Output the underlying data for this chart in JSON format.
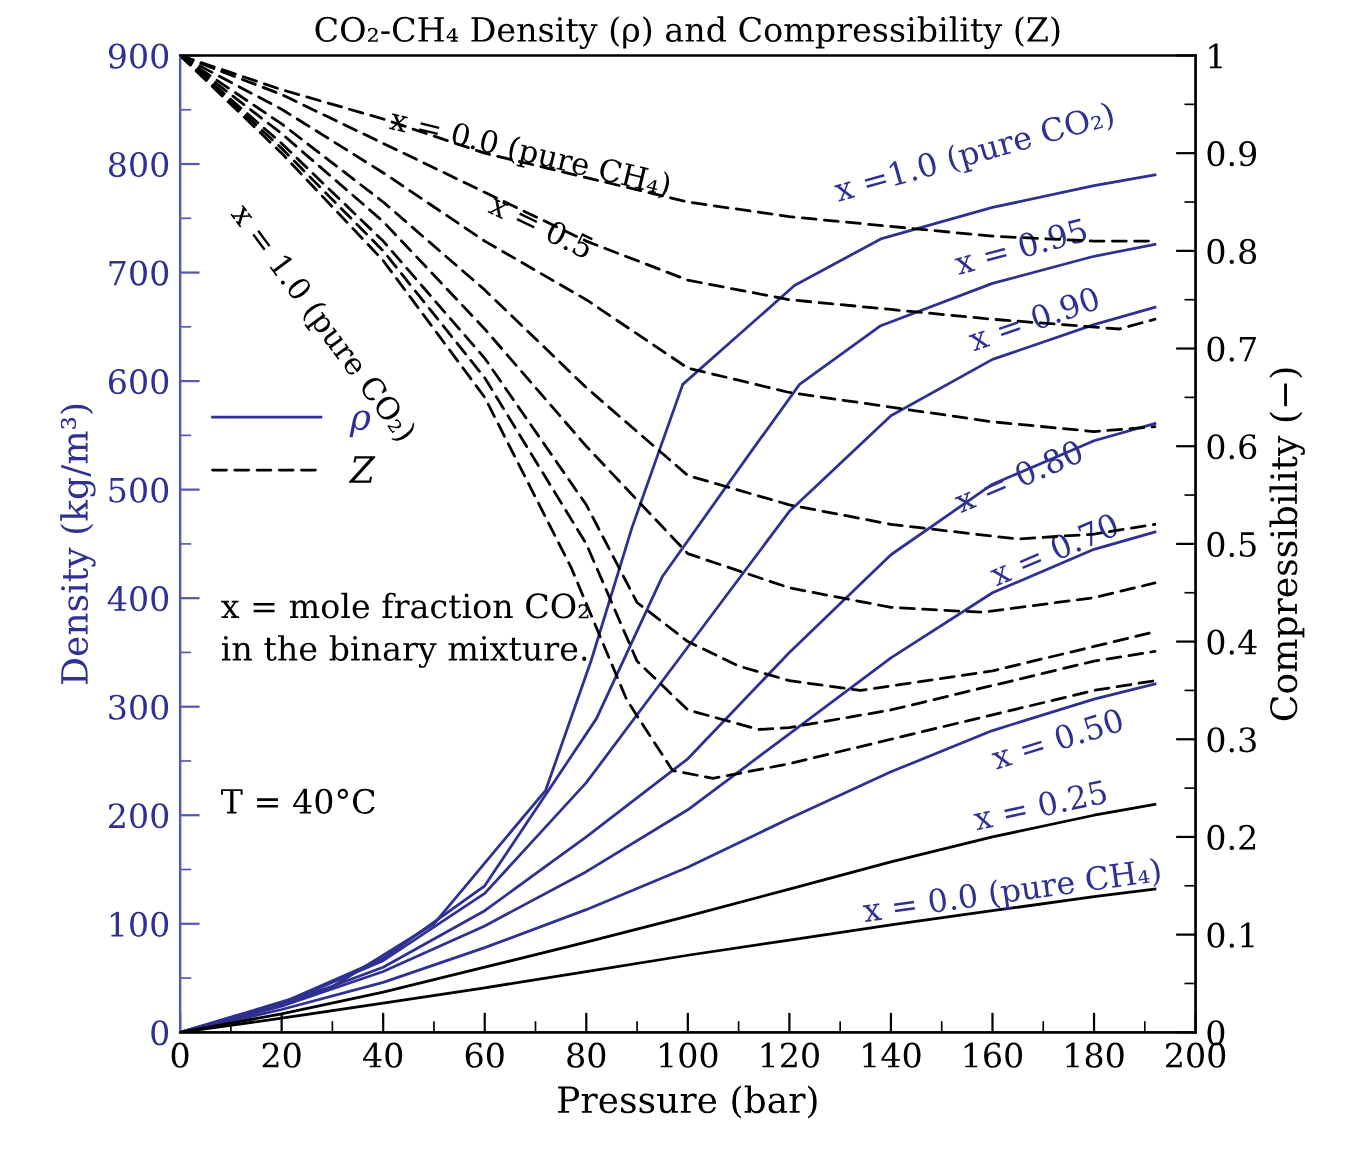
{
  "chart_data": {
    "type": "line",
    "title": "CO₂-CH₄ Density (ρ) and Compressibility (Z)",
    "xlabel": "Pressure (bar)",
    "ylabel": "Density (kg/m³)",
    "y2label": "Compressibility (−)",
    "xlim": [
      0,
      200
    ],
    "xticks": [
      0,
      20,
      40,
      60,
      80,
      100,
      120,
      140,
      160,
      180,
      200
    ],
    "ylim": [
      0,
      900
    ],
    "yticks": [
      0,
      100,
      200,
      300,
      400,
      500,
      600,
      700,
      800,
      900
    ],
    "y2lim": [
      0,
      1
    ],
    "y2ticks": [
      0,
      0.1,
      0.2,
      0.3,
      0.4,
      0.5,
      0.6,
      0.7,
      0.8,
      0.9,
      1
    ],
    "grid": false,
    "legend": "left",
    "marker": "none",
    "series": [
      {
        "name": "ρ",
        "axis": "y",
        "color": "#2e3192",
        "line_style": "solid",
        "x": [
          0,
          20,
          30,
          50,
          72,
          81,
          89,
          99,
          121,
          138,
          160,
          180,
          192
        ],
        "values": [
          0,
          28,
          42,
          100,
          223,
          343,
          465,
          597,
          688,
          731,
          760,
          780,
          790
        ]
      },
      {
        "axis": "y",
        "color": "#2e3192",
        "line_style": "solid",
        "x": [
          0,
          20,
          40,
          60,
          82,
          95,
          112,
          122,
          138,
          160,
          180,
          192
        ],
        "values": [
          0,
          27,
          68,
          135,
          289,
          420,
          532,
          597,
          651,
          690,
          715,
          726
        ]
      },
      {
        "axis": "y",
        "color": "#2e3192",
        "line_style": "solid",
        "x": [
          0,
          20,
          40,
          60,
          80,
          100,
          120,
          140,
          160,
          180,
          192
        ],
        "values": [
          0,
          26,
          66,
          128,
          230,
          355,
          480,
          568,
          620,
          652,
          668
        ]
      },
      {
        "axis": "y",
        "color": "#2e3192",
        "line_style": "solid",
        "x": [
          0,
          20,
          40,
          60,
          80,
          100,
          120,
          140,
          160,
          180,
          192
        ],
        "values": [
          0,
          25,
          60,
          112,
          180,
          252,
          350,
          440,
          505,
          545,
          561
        ]
      },
      {
        "axis": "y",
        "color": "#2e3192",
        "line_style": "solid",
        "x": [
          0,
          20,
          40,
          60,
          80,
          100,
          120,
          140,
          160,
          180,
          192
        ],
        "values": [
          0,
          24,
          56,
          98,
          148,
          205,
          275,
          345,
          405,
          445,
          461
        ]
      },
      {
        "axis": "y",
        "color": "#2e3192",
        "line_style": "solid",
        "x": [
          0,
          20,
          40,
          60,
          80,
          100,
          120,
          140,
          160,
          180,
          192
        ],
        "values": [
          0,
          21,
          46,
          78,
          113,
          152,
          197,
          240,
          278,
          307,
          321
        ]
      },
      {
        "axis": "y",
        "color": "#000000",
        "line_style": "solid",
        "x": [
          0,
          20,
          40,
          60,
          80,
          100,
          120,
          140,
          160,
          180,
          192
        ],
        "values": [
          0,
          17,
          37,
          60,
          83,
          107,
          132,
          157,
          180,
          200,
          210
        ]
      },
      {
        "axis": "y",
        "color": "#000000",
        "line_style": "solid",
        "x": [
          0,
          20,
          40,
          60,
          80,
          100,
          120,
          140,
          160,
          180,
          192
        ],
        "values": [
          0,
          13,
          27,
          41,
          56,
          71,
          85,
          99,
          112,
          125,
          132
        ]
      },
      {
        "name": "Z",
        "axis": "y2",
        "color": "#000000",
        "line_style": "dashed",
        "x": [
          0,
          20,
          40,
          60,
          77,
          88,
          97,
          105,
          120,
          140,
          160,
          180,
          192
        ],
        "values": [
          1,
          0.9,
          0.79,
          0.65,
          0.476,
          0.34,
          0.268,
          0.26,
          0.275,
          0.3,
          0.325,
          0.35,
          0.36
        ]
      },
      {
        "axis": "y2",
        "color": "#000000",
        "line_style": "dashed",
        "x": [
          0,
          20,
          40,
          60,
          80,
          90,
          100,
          114,
          120,
          140,
          160,
          180,
          192
        ],
        "values": [
          1,
          0.905,
          0.8,
          0.67,
          0.5,
          0.38,
          0.33,
          0.31,
          0.312,
          0.33,
          0.355,
          0.38,
          0.39
        ]
      },
      {
        "axis": "y2",
        "color": "#000000",
        "line_style": "dashed",
        "x": [
          0,
          20,
          40,
          60,
          80,
          90,
          100,
          110,
          120,
          134,
          160,
          180,
          192
        ],
        "values": [
          1,
          0.91,
          0.81,
          0.69,
          0.54,
          0.44,
          0.4,
          0.375,
          0.36,
          0.35,
          0.37,
          0.395,
          0.41
        ]
      },
      {
        "axis": "y2",
        "color": "#000000",
        "line_style": "dashed",
        "x": [
          0,
          20,
          40,
          60,
          80,
          100,
          120,
          140,
          158,
          180,
          192
        ],
        "values": [
          1,
          0.92,
          0.83,
          0.72,
          0.6,
          0.49,
          0.455,
          0.435,
          0.43,
          0.445,
          0.46
        ]
      },
      {
        "axis": "y2",
        "color": "#000000",
        "line_style": "dashed",
        "x": [
          0,
          20,
          40,
          60,
          80,
          100,
          120,
          140,
          165,
          180,
          192
        ],
        "values": [
          1,
          0.93,
          0.85,
          0.76,
          0.66,
          0.57,
          0.54,
          0.52,
          0.505,
          0.51,
          0.52
        ]
      },
      {
        "axis": "y2",
        "color": "#000000",
        "line_style": "dashed",
        "x": [
          0,
          20,
          40,
          60,
          80,
          100,
          120,
          140,
          160,
          180,
          192
        ],
        "values": [
          1,
          0.945,
          0.88,
          0.81,
          0.75,
          0.68,
          0.655,
          0.64,
          0.625,
          0.615,
          0.62
        ]
      },
      {
        "axis": "y2",
        "color": "#000000",
        "line_style": "dashed",
        "x": [
          0,
          20,
          40,
          60,
          80,
          100,
          120,
          140,
          160,
          185,
          192
        ],
        "values": [
          1,
          0.96,
          0.91,
          0.86,
          0.81,
          0.77,
          0.75,
          0.74,
          0.73,
          0.72,
          0.73
        ]
      },
      {
        "axis": "y2",
        "color": "#000000",
        "line_style": "dashed",
        "x": [
          0,
          20,
          40,
          60,
          80,
          100,
          120,
          140,
          160,
          180,
          192
        ],
        "values": [
          1,
          0.965,
          0.935,
          0.9,
          0.875,
          0.85,
          0.835,
          0.825,
          0.815,
          0.81,
          0.81
        ]
      }
    ],
    "annotations": [
      "x =1.0 (pure CO₂)",
      "x = 0.95",
      "x = 0.90",
      "x = 0.80",
      "x = 0.70",
      "x = 0.50",
      "x = 0.25",
      "x = 0.0 (pure CH₄)",
      "x = 0.0 (pure CH₄)",
      "x = 0.5",
      "x = 1.0 (pure CO₂)",
      "x = mole fraction CO₂\nin the binary mixture.",
      "T = 40°C"
    ]
  }
}
